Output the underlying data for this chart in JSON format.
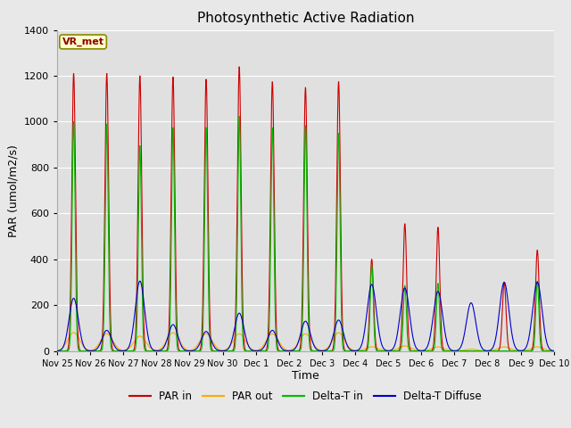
{
  "title": "Photosynthetic Active Radiation",
  "ylabel": "PAR (umol/m2/s)",
  "xlabel": "Time",
  "annotation": "VR_met",
  "ylim": [
    0,
    1400
  ],
  "legend_labels": [
    "PAR in",
    "PAR out",
    "Delta-T in",
    "Delta-T Diffuse"
  ],
  "legend_colors": [
    "#cc0000",
    "#ffaa00",
    "#00bb00",
    "#0000cc"
  ],
  "background_color": "#e8e8e8",
  "axes_face_color": "#e0e0e0",
  "grid_color": "#ffffff",
  "title_fontsize": 11,
  "label_fontsize": 9,
  "tick_fontsize": 7,
  "tick_labels": [
    "Nov 25",
    "Nov 26",
    "Nov 27",
    "Nov 28",
    "Nov 29",
    "Nov 30",
    "Dec 1",
    "Dec 2",
    "Dec 3",
    "Dec 4",
    "Dec 5",
    "Dec 6",
    "Dec 7",
    "Dec 8",
    "Dec 9",
    "Dec 10"
  ],
  "day_peaks_PAR_in": [
    1210,
    1210,
    1200,
    1195,
    1185,
    1240,
    1175,
    1150,
    1175,
    400,
    555,
    540,
    0,
    300,
    440
  ],
  "day_peaks_PAR_out": [
    80,
    75,
    65,
    80,
    75,
    75,
    75,
    75,
    80,
    18,
    22,
    18,
    8,
    18,
    18
  ],
  "day_peaks_DeltaT_in": [
    1000,
    990,
    895,
    975,
    975,
    1025,
    975,
    985,
    950,
    375,
    285,
    295,
    0,
    0,
    305
  ],
  "day_peaks_DeltaT_diff": [
    230,
    90,
    305,
    115,
    85,
    165,
    90,
    130,
    135,
    290,
    275,
    260,
    210,
    300,
    300
  ],
  "sigma_PAR_in": 0.055,
  "sigma_PAR_out": 0.18,
  "sigma_DeltaT_in": 0.045,
  "sigma_DeltaT_diff": 0.14,
  "pts_per_day": 200,
  "days": 15
}
